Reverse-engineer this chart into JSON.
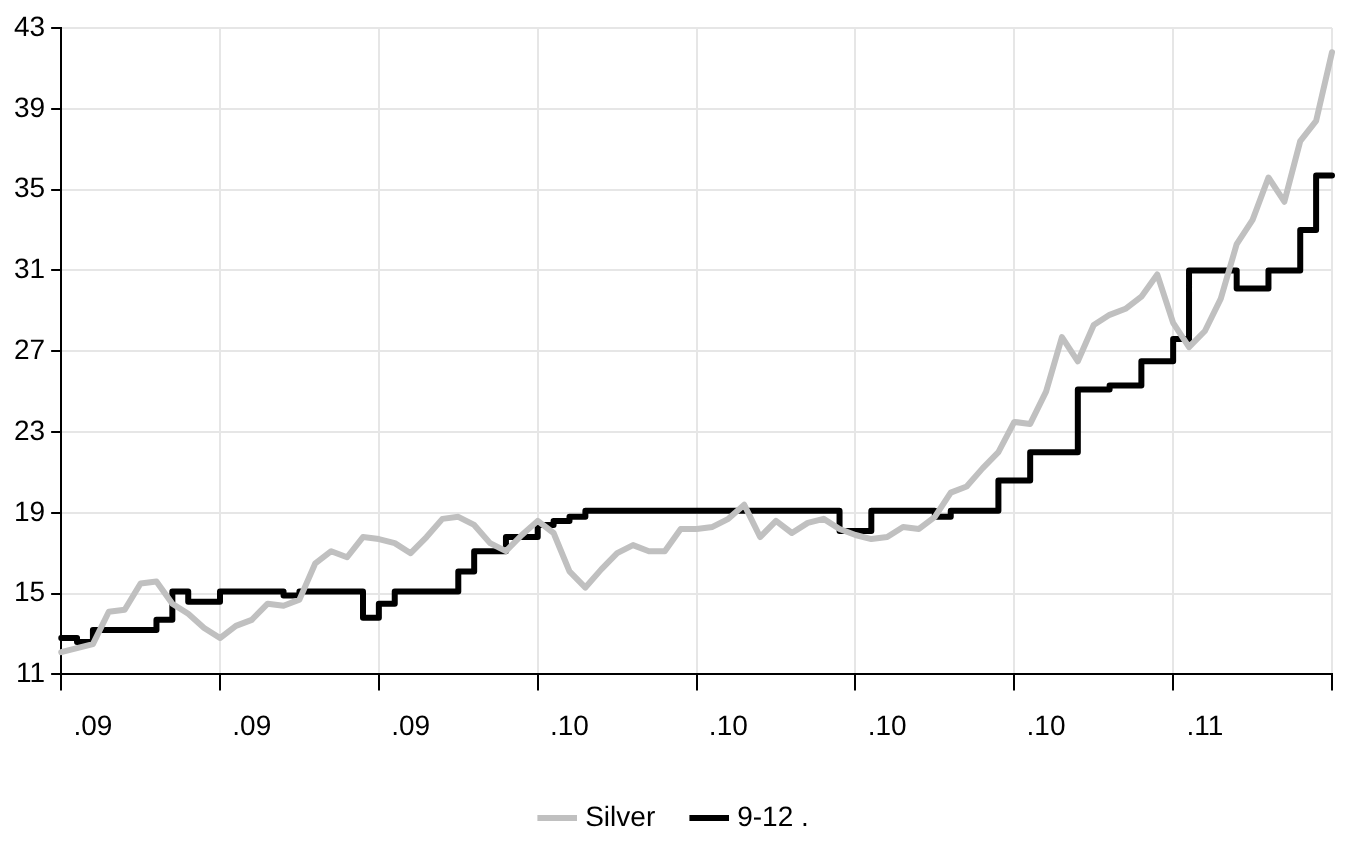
{
  "chart_data": {
    "type": "line",
    "categories": [
      null,
      null,
      ".09",
      null,
      null,
      null,
      null,
      null,
      null,
      null,
      null,
      null,
      ".09",
      null,
      null,
      null,
      null,
      null,
      null,
      null,
      null,
      null,
      ".09",
      null,
      null,
      null,
      null,
      null,
      null,
      null,
      null,
      null,
      ".10",
      null,
      null,
      null,
      null,
      null,
      null,
      null,
      null,
      null,
      ".10",
      null,
      null,
      null,
      null,
      null,
      null,
      null,
      null,
      null,
      ".10",
      null,
      null,
      null,
      null,
      null,
      null,
      null,
      null,
      null,
      ".10",
      null,
      null,
      null,
      null,
      null,
      null,
      null,
      null,
      null,
      ".11",
      null,
      null,
      null,
      null,
      null,
      null,
      null,
      null
    ],
    "ylim": [
      11,
      43
    ],
    "yticks": [
      11,
      15,
      19,
      23,
      27,
      31,
      35,
      39,
      43
    ],
    "grid": true,
    "legend": "bottom",
    "marker": "none",
    "series": [
      {
        "name": "Silver",
        "type": "line",
        "color": "#c0c0c0",
        "values": [
          12.1,
          12.3,
          12.5,
          14.1,
          14.2,
          15.5,
          15.6,
          14.5,
          14,
          13.3,
          12.8,
          13.4,
          13.7,
          14.5,
          14.4,
          14.7,
          16.5,
          17.1,
          16.8,
          17.8,
          17.7,
          17.5,
          17,
          17.8,
          18.7,
          18.8,
          18.4,
          17.5,
          17.1,
          17.9,
          18.6,
          18,
          16.1,
          15.3,
          16.2,
          17,
          17.4,
          17.1,
          17.1,
          18.2,
          18.2,
          18.3,
          18.7,
          19.4,
          17.8,
          18.6,
          18,
          18.5,
          18.7,
          18.2,
          17.9,
          17.7,
          17.8,
          18.3,
          18.2,
          18.8,
          20,
          20.3,
          21.2,
          22,
          23.5,
          23.4,
          25,
          27.7,
          26.5,
          28.3,
          28.8,
          29.1,
          29.7,
          30.8,
          28.4,
          27.2,
          28,
          29.6,
          32.3,
          33.5,
          35.6,
          34.4,
          37.4,
          38.4,
          41.8
        ]
      },
      {
        "name": "9-12 .",
        "type": "step",
        "color": "#000000",
        "values": [
          12.8,
          12.6,
          13.2,
          13.2,
          13.2,
          13.2,
          13.7,
          15.1,
          14.6,
          14.6,
          15.1,
          15.1,
          15.1,
          15.1,
          14.9,
          15.1,
          15.1,
          15.1,
          15.1,
          13.8,
          14.5,
          15.1,
          15.1,
          15.1,
          15.1,
          16.1,
          17.1,
          17.1,
          17.8,
          17.8,
          18.4,
          18.6,
          18.8,
          19.1,
          19.1,
          19.1,
          19.1,
          19.1,
          19.1,
          19.1,
          19.1,
          19.1,
          19.1,
          19.1,
          19.1,
          19.1,
          19.1,
          19.1,
          19.1,
          18.1,
          18.1,
          19.1,
          19.1,
          19.1,
          19.1,
          18.8,
          19.1,
          19.1,
          19.1,
          20.6,
          20.6,
          22,
          22,
          22,
          25.1,
          25.1,
          25.3,
          25.3,
          26.5,
          26.5,
          27.6,
          31,
          31,
          31,
          30.1,
          30.1,
          31,
          31,
          33,
          35.7,
          35.7
        ]
      }
    ]
  }
}
